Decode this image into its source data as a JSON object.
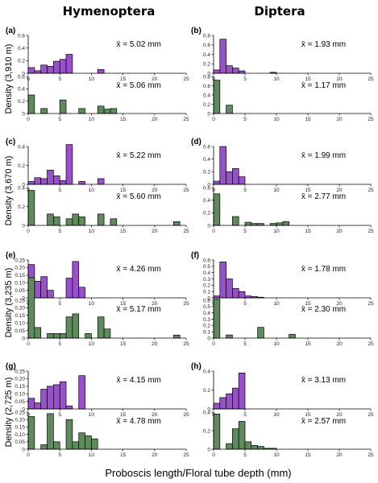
{
  "titles": {
    "left": "Hymenoptera",
    "right": "Diptera"
  },
  "row_labels": [
    "Density (3,910 m)",
    "Density (3,670 m)",
    "Density (3,235 m)",
    "Density (2,725 m)"
  ],
  "xlabel": "Proboscis length/Floral tube depth (mm)",
  "mean_symbol": "x̄",
  "colors": {
    "proboscis": "#9a50cc",
    "floral": "#5f8a5c"
  },
  "chart_data": [
    {
      "panel": "(a)",
      "type": "bar",
      "xlim": [
        0,
        25
      ],
      "ylim": [
        0,
        0.6
      ],
      "yticks": [
        "0",
        "0.2",
        "0.4",
        "0.6"
      ],
      "bin_width": 1,
      "series": [
        {
          "bins": [
            0,
            1,
            2,
            3,
            4,
            5,
            6,
            7,
            8,
            9,
            10,
            11
          ],
          "values": [
            0.09,
            0.04,
            0.13,
            0.11,
            0.19,
            0.22,
            0.3,
            0.0,
            0.0,
            0.0,
            0.0,
            0.06
          ],
          "mean": "x̄ = 5.02 mm"
        },
        {
          "bins": [
            0,
            1,
            2,
            3,
            4,
            5,
            6,
            7,
            8,
            9,
            10,
            11,
            12,
            13
          ],
          "values": [
            0.3,
            0.0,
            0.08,
            0.0,
            0.0,
            0.22,
            0.0,
            0.0,
            0.08,
            0.0,
            0.0,
            0.12,
            0.07,
            0.08
          ],
          "mean": "x̄ = 5.06 mm"
        }
      ]
    },
    {
      "panel": "(b)",
      "type": "bar",
      "xlim": [
        0,
        25
      ],
      "ylim": [
        0,
        0.8
      ],
      "yticks": [
        "0",
        "0.2",
        "0.4",
        "0.6",
        "0.8"
      ],
      "bin_width": 1,
      "series": [
        {
          "bins": [
            0,
            1,
            2,
            3,
            4,
            5,
            6,
            7,
            8,
            9
          ],
          "values": [
            0.07,
            0.72,
            0.16,
            0.11,
            0.05,
            0.0,
            0.0,
            0.0,
            0.0,
            0.02
          ],
          "mean": "x̄ = 1.93 mm"
        },
        {
          "bins": [
            0,
            1,
            2
          ],
          "values": [
            0.72,
            0.0,
            0.18
          ],
          "mean": "x̄ = 1.17 mm"
        }
      ]
    },
    {
      "panel": "(c)",
      "type": "bar",
      "xlim": [
        0,
        25
      ],
      "ylim": [
        0,
        0.4
      ],
      "yticks": [
        "0",
        "0.2",
        "0.4"
      ],
      "bin_width": 1,
      "series": [
        {
          "bins": [
            0,
            1,
            2,
            3,
            4,
            5,
            6,
            7,
            8,
            9,
            10,
            11
          ],
          "values": [
            0.03,
            0.07,
            0.06,
            0.15,
            0.09,
            0.04,
            0.42,
            0.0,
            0.03,
            0.0,
            0.0,
            0.06
          ],
          "mean": "x̄ = 5.22 mm"
        },
        {
          "bins": [
            0,
            1,
            2,
            3,
            4,
            5,
            6,
            7,
            8,
            9,
            10,
            11,
            12,
            13,
            14,
            15,
            16,
            17,
            18,
            19,
            20,
            21,
            22,
            23
          ],
          "values": [
            0.37,
            0.0,
            0.0,
            0.12,
            0.09,
            0.0,
            0.07,
            0.12,
            0.09,
            0.0,
            0.0,
            0.12,
            0.0,
            0.07,
            0.0,
            0.0,
            0.0,
            0.0,
            0.0,
            0.0,
            0.0,
            0.0,
            0.0,
            0.04
          ],
          "mean": "x̄ = 5.60 mm"
        }
      ]
    },
    {
      "panel": "(d)",
      "type": "bar",
      "xlim": [
        0,
        25
      ],
      "ylim": [
        0,
        0.6
      ],
      "yticks": [
        "0",
        "0.2",
        "0.4",
        "0.6"
      ],
      "bin_width": 1,
      "series": [
        {
          "bins": [
            0,
            1,
            2,
            3,
            4
          ],
          "values": [
            0.05,
            0.6,
            0.2,
            0.25,
            0.12
          ],
          "mean": "x̄ = 1.99 mm"
        },
        {
          "bins": [
            0,
            1,
            2,
            3,
            4,
            5,
            6,
            7,
            8,
            9,
            10,
            11
          ],
          "values": [
            0.5,
            0.0,
            0.0,
            0.14,
            0.0,
            0.05,
            0.03,
            0.03,
            0.0,
            0.03,
            0.04,
            0.06
          ],
          "mean": "x̄ = 2.77 mm"
        }
      ]
    },
    {
      "panel": "(e)",
      "type": "bar",
      "xlim": [
        0,
        25
      ],
      "ylim": [
        0,
        0.25
      ],
      "yticks": [
        "0",
        "0.05",
        "0.10",
        "0.15",
        "0.20",
        "0.25"
      ],
      "bin_width": 1,
      "series": [
        {
          "bins": [
            0,
            1,
            2,
            3,
            4,
            5,
            6,
            7,
            8
          ],
          "values": [
            0.22,
            0.11,
            0.14,
            0.05,
            0.0,
            0.0,
            0.13,
            0.24,
            0.07
          ],
          "mean": "x̄ = 4.26 mm"
        },
        {
          "bins": [
            0,
            1,
            2,
            3,
            4,
            5,
            6,
            7,
            8,
            9,
            10,
            11,
            12,
            13,
            14,
            15,
            16,
            17,
            18,
            19,
            20,
            21,
            22,
            23
          ],
          "values": [
            0.4,
            0.07,
            0.0,
            0.03,
            0.03,
            0.03,
            0.14,
            0.16,
            0.0,
            0.03,
            0.0,
            0.14,
            0.06,
            0.0,
            0.0,
            0.0,
            0.0,
            0.0,
            0.0,
            0.0,
            0.0,
            0.0,
            0.0,
            0.02
          ],
          "mean": "x̄ = 5.17 mm"
        }
      ]
    },
    {
      "panel": "(f)",
      "type": "bar",
      "xlim": [
        0,
        25
      ],
      "ylim": [
        0,
        0.6
      ],
      "yticks": [
        "0",
        "0.1",
        "0.2",
        "0.3",
        "0.4",
        "0.5",
        "0.6"
      ],
      "bin_width": 1,
      "series": [
        {
          "bins": [
            0,
            1,
            2,
            3,
            4,
            5,
            6,
            7
          ],
          "values": [
            0.03,
            0.57,
            0.3,
            0.15,
            0.1,
            0.03,
            0.02,
            0.01
          ],
          "mean": "x̄ = 1.78 mm"
        },
        {
          "bins": [
            0,
            1,
            2,
            3,
            4,
            5,
            6,
            7,
            8,
            9,
            10,
            11,
            12
          ],
          "values": [
            0.62,
            0.0,
            0.05,
            0.0,
            0.0,
            0.0,
            0.0,
            0.17,
            0.0,
            0.0,
            0.0,
            0.0,
            0.06
          ],
          "mean": "x̄ = 2.30 mm"
        }
      ]
    },
    {
      "panel": "(g)",
      "type": "bar",
      "xlim": [
        0,
        25
      ],
      "ylim": [
        0,
        0.25
      ],
      "yticks": [
        "0",
        "0.05",
        "0.10",
        "0.15",
        "0.20",
        "0.25"
      ],
      "bin_width": 1,
      "series": [
        {
          "bins": [
            0,
            1,
            2,
            3,
            4,
            5,
            6,
            7,
            8
          ],
          "values": [
            0.07,
            0.04,
            0.13,
            0.15,
            0.16,
            0.18,
            0.02,
            0.0,
            0.22
          ],
          "mean": "x̄ = 4.15 mm"
        },
        {
          "bins": [
            0,
            1,
            2,
            3,
            4,
            5,
            6,
            7,
            8,
            9,
            10
          ],
          "values": [
            0.22,
            0.0,
            0.03,
            0.24,
            0.05,
            0.0,
            0.2,
            0.05,
            0.11,
            0.09,
            0.07
          ],
          "mean": "x̄ = 4.78 mm"
        }
      ]
    },
    {
      "panel": "(h)",
      "type": "bar",
      "xlim": [
        0,
        25
      ],
      "ylim": [
        0,
        0.4
      ],
      "yticks": [
        "0",
        "0.2",
        "0.4"
      ],
      "bin_width": 1,
      "series": [
        {
          "bins": [
            0,
            1,
            2,
            3,
            4
          ],
          "values": [
            0.06,
            0.12,
            0.16,
            0.22,
            0.38
          ],
          "mean": "x̄ = 3.13 mm"
        },
        {
          "bins": [
            0,
            1,
            2,
            3,
            4,
            5,
            6,
            7,
            8,
            9
          ],
          "values": [
            0.38,
            0.0,
            0.06,
            0.22,
            0.3,
            0.08,
            0.04,
            0.03,
            0.01,
            0.01
          ],
          "mean": "x̄ = 2.57 mm"
        }
      ]
    }
  ]
}
